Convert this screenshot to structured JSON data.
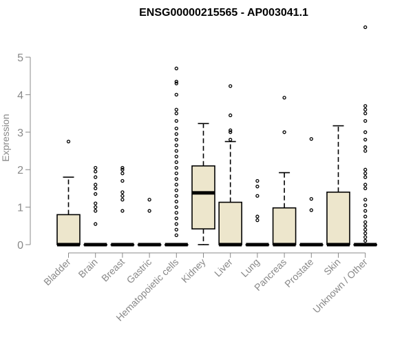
{
  "chart_data": {
    "type": "box",
    "title": "ENSG00000215565 - AP003041.1",
    "xlabel": "",
    "ylabel": "Expression",
    "ylim": [
      0,
      5.4
    ],
    "yticks": [
      0,
      1,
      2,
      3,
      4,
      5
    ],
    "grid": false,
    "colors": {
      "box_fill": "#ede6cc",
      "box_stroke": "#000000",
      "axis": "#888888",
      "label": "#888888",
      "title": "#000000"
    },
    "categories": [
      "Bladder",
      "Brain",
      "Breast",
      "Gastric",
      "Hematopoietic cells",
      "Kidney",
      "Liver",
      "Lung",
      "Pancreas",
      "Prostate",
      "Skin",
      "Unknown / Other"
    ],
    "boxes": [
      {
        "category": "Bladder",
        "min": 0,
        "q1": 0,
        "median": 0,
        "q3": 0.8,
        "max": 1.8,
        "outliers": [
          2.75
        ]
      },
      {
        "category": "Brain",
        "min": 0,
        "q1": 0,
        "median": 0,
        "q3": 0,
        "max": 0,
        "outliers": [
          0.55,
          0.9,
          1.0,
          1.1,
          1.35,
          1.5,
          1.6,
          1.8,
          1.95,
          2.05
        ]
      },
      {
        "category": "Breast",
        "min": 0,
        "q1": 0,
        "median": 0,
        "q3": 0,
        "max": 0,
        "outliers": [
          0.9,
          1.2,
          1.3,
          1.4,
          1.7,
          1.9,
          2.0,
          2.05
        ]
      },
      {
        "category": "Gastric",
        "min": 0,
        "q1": 0,
        "median": 0,
        "q3": 0,
        "max": 0,
        "outliers": [
          0.9,
          1.2
        ]
      },
      {
        "category": "Hematopoietic cells",
        "min": 0,
        "q1": 0,
        "median": 0,
        "q3": 0,
        "max": 0,
        "outliers": [
          0.25,
          0.4,
          0.55,
          0.7,
          0.85,
          1.0,
          1.15,
          1.3,
          1.45,
          1.6,
          1.75,
          1.9,
          2.05,
          2.2,
          2.35,
          2.5,
          2.65,
          2.8,
          2.95,
          3.1,
          3.3,
          3.5,
          3.6,
          4.0,
          4.3,
          4.35,
          4.7
        ]
      },
      {
        "category": "Kidney",
        "min": 0,
        "q1": 0.42,
        "median": 1.38,
        "q3": 2.1,
        "max": 3.23,
        "outliers": []
      },
      {
        "category": "Liver",
        "min": 0,
        "q1": 0,
        "median": 0,
        "q3": 1.13,
        "max": 2.75,
        "outliers": [
          2.8,
          3.0,
          3.05,
          3.45,
          4.23
        ]
      },
      {
        "category": "Lung",
        "min": 0,
        "q1": 0,
        "median": 0,
        "q3": 0,
        "max": 0,
        "outliers": [
          0.65,
          0.75,
          1.3,
          1.55,
          1.7
        ]
      },
      {
        "category": "Pancreas",
        "min": 0,
        "q1": 0,
        "median": 0,
        "q3": 0.98,
        "max": 1.92,
        "outliers": [
          3.0,
          3.92
        ]
      },
      {
        "category": "Prostate",
        "min": 0,
        "q1": 0,
        "median": 0,
        "q3": 0,
        "max": 0,
        "outliers": [
          0.92,
          1.22,
          2.82
        ]
      },
      {
        "category": "Skin",
        "min": 0,
        "q1": 0,
        "median": 0,
        "q3": 1.4,
        "max": 3.17,
        "outliers": []
      },
      {
        "category": "Unknown / Other",
        "min": 0,
        "q1": 0,
        "median": 0,
        "q3": 0,
        "max": 0,
        "outliers": [
          0.1,
          0.2,
          0.3,
          0.4,
          0.5,
          0.6,
          0.75,
          0.9,
          1.05,
          1.2,
          1.5,
          1.6,
          1.8,
          1.9,
          2.0,
          2.5,
          2.6,
          2.8,
          3.0,
          3.3,
          3.5,
          3.6,
          3.7,
          5.8
        ]
      }
    ]
  }
}
